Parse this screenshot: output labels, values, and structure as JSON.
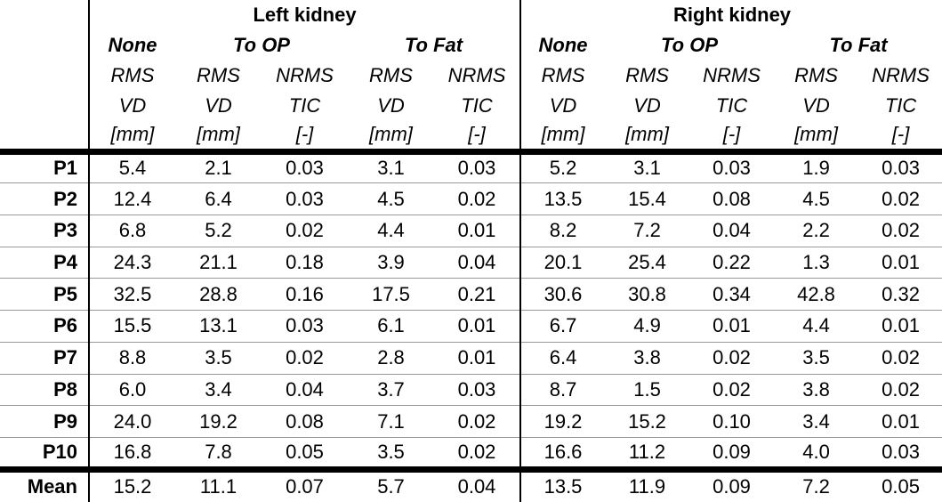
{
  "table": {
    "header": {
      "left_kidney_title": "Left kidney",
      "right_kidney_title": "Right kidney",
      "methods": [
        "None",
        "To OP",
        "To Fat"
      ],
      "metric_line1": [
        "RMS",
        "RMS",
        "NRMS",
        "RMS",
        "NRMS"
      ],
      "metric_line2": [
        "VD",
        "VD",
        "TIC",
        "VD",
        "TIC"
      ],
      "metric_line3": [
        "[mm]",
        "[mm]",
        "[-]",
        "[mm]",
        "[-]"
      ]
    },
    "rows": [
      {
        "label": "P1",
        "values": [
          "5.4",
          "2.1",
          "0.03",
          "3.1",
          "0.03",
          "5.2",
          "3.1",
          "0.03",
          "1.9",
          "0.03"
        ]
      },
      {
        "label": "P2",
        "values": [
          "12.4",
          "6.4",
          "0.03",
          "4.5",
          "0.02",
          "13.5",
          "15.4",
          "0.08",
          "4.5",
          "0.02"
        ]
      },
      {
        "label": "P3",
        "values": [
          "6.8",
          "5.2",
          "0.02",
          "4.4",
          "0.01",
          "8.2",
          "7.2",
          "0.04",
          "2.2",
          "0.02"
        ]
      },
      {
        "label": "P4",
        "values": [
          "24.3",
          "21.1",
          "0.18",
          "3.9",
          "0.04",
          "20.1",
          "25.4",
          "0.22",
          "1.3",
          "0.01"
        ]
      },
      {
        "label": "P5",
        "values": [
          "32.5",
          "28.8",
          "0.16",
          "17.5",
          "0.21",
          "30.6",
          "30.8",
          "0.34",
          "42.8",
          "0.32"
        ]
      },
      {
        "label": "P6",
        "values": [
          "15.5",
          "13.1",
          "0.03",
          "6.1",
          "0.01",
          "6.7",
          "4.9",
          "0.01",
          "4.4",
          "0.01"
        ]
      },
      {
        "label": "P7",
        "values": [
          "8.8",
          "3.5",
          "0.02",
          "2.8",
          "0.01",
          "6.4",
          "3.8",
          "0.02",
          "3.5",
          "0.02"
        ]
      },
      {
        "label": "P8",
        "values": [
          "6.0",
          "3.4",
          "0.04",
          "3.7",
          "0.03",
          "8.7",
          "1.5",
          "0.02",
          "3.8",
          "0.02"
        ]
      },
      {
        "label": "P9",
        "values": [
          "24.0",
          "19.2",
          "0.08",
          "7.1",
          "0.02",
          "19.2",
          "15.2",
          "0.10",
          "3.4",
          "0.01"
        ]
      },
      {
        "label": "P10",
        "values": [
          "16.8",
          "7.8",
          "0.05",
          "3.5",
          "0.02",
          "16.6",
          "11.2",
          "0.09",
          "4.0",
          "0.03"
        ]
      },
      {
        "label": "Mean",
        "values": [
          "15.2",
          "11.1",
          "0.07",
          "5.7",
          "0.04",
          "13.5",
          "11.9",
          "0.09",
          "7.2",
          "0.05"
        ],
        "is_mean": true
      }
    ]
  }
}
